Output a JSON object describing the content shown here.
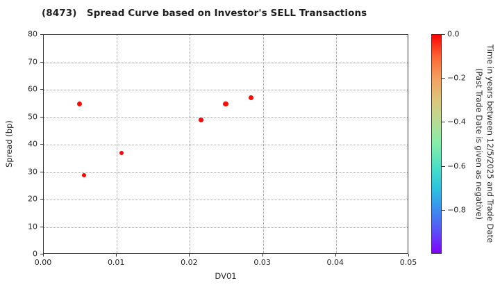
{
  "title": "(8473)   Spread Curve based on Investor's SELL Transactions",
  "chart_data": {
    "type": "scatter",
    "title": "(8473)   Spread Curve based on Investor's SELL Transactions",
    "xlabel": "DV01",
    "ylabel": "Spread (bp)",
    "xlim": [
      0.0,
      0.05
    ],
    "ylim": [
      0,
      80
    ],
    "xticks": [
      0.0,
      0.01,
      0.02,
      0.03,
      0.04,
      0.05
    ],
    "xtick_labels": [
      "0.00",
      "0.01",
      "0.02",
      "0.03",
      "0.04",
      "0.05"
    ],
    "yticks": [
      0,
      10,
      20,
      30,
      40,
      50,
      60,
      70,
      80
    ],
    "ytick_labels": [
      "0",
      "10",
      "20",
      "30",
      "40",
      "50",
      "60",
      "70",
      "80"
    ],
    "grid": "dotted",
    "legend": "none",
    "point_color": "#fb0a06",
    "points": [
      {
        "x": 0.0049,
        "y": 54.9,
        "time": 0.0,
        "r": 3.5
      },
      {
        "x": 0.0055,
        "y": 28.9,
        "time": 0.0,
        "r": 2.8
      },
      {
        "x": 0.0106,
        "y": 37.0,
        "time": 0.0,
        "r": 3.0
      },
      {
        "x": 0.0215,
        "y": 48.9,
        "time": 0.0,
        "r": 3.4
      },
      {
        "x": 0.0249,
        "y": 54.9,
        "time": 0.0,
        "r": 3.6
      },
      {
        "x": 0.0284,
        "y": 57.1,
        "time": 0.0,
        "r": 3.6
      }
    ],
    "colorbar": {
      "label_line1": "Time in years between 12/5/2025 and Trade Date",
      "label_line2": "(Past Trade Date is given as negative)",
      "max": 0.0,
      "min": -1.0,
      "ticks": [
        0.0,
        -0.2,
        -0.4,
        -0.6,
        -0.8
      ],
      "tick_labels": [
        "0.0",
        "−0.2",
        "−0.4",
        "−0.6",
        "−0.8"
      ],
      "gradient_stops": [
        {
          "at": 0.0,
          "color": "#fc0303"
        },
        {
          "at": 0.1,
          "color": "#fc6432"
        },
        {
          "at": 0.2,
          "color": "#f2a15f"
        },
        {
          "at": 0.3,
          "color": "#ddc67e"
        },
        {
          "at": 0.4,
          "color": "#b6dc95"
        },
        {
          "at": 0.5,
          "color": "#85edaa"
        },
        {
          "at": 0.62,
          "color": "#44dcca"
        },
        {
          "at": 0.7,
          "color": "#2cc4de"
        },
        {
          "at": 0.8,
          "color": "#3a8ef0"
        },
        {
          "at": 0.9,
          "color": "#5b50f8"
        },
        {
          "at": 1.0,
          "color": "#7f01fe"
        }
      ]
    }
  }
}
